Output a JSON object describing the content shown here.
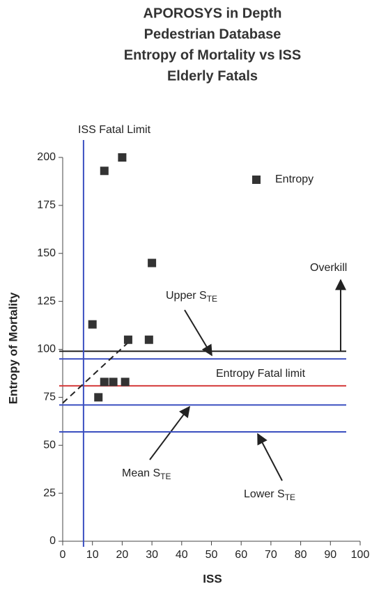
{
  "chart_data": {
    "type": "scatter",
    "title": [
      "APOROSYS in Depth",
      "Pedestrian Database",
      "Entropy of Mortality vs ISS",
      "Elderly Fatals"
    ],
    "x_label": "ISS",
    "y_label": "Entropy of Mortality",
    "xlim": [
      0,
      100
    ],
    "xticks": [
      0,
      10,
      20,
      30,
      40,
      50,
      60,
      70,
      80,
      90,
      100
    ],
    "ylim": [
      0,
      200
    ],
    "yticks": [
      0,
      25,
      50,
      75,
      100,
      125,
      150,
      175,
      200
    ],
    "series": [
      {
        "name": "Entropy",
        "color": "#333333",
        "x": [
          14,
          20,
          30,
          10,
          22,
          29,
          14,
          17,
          21,
          12
        ],
        "values": [
          193,
          200,
          145,
          113,
          105,
          105,
          83,
          83,
          83,
          75
        ]
      }
    ],
    "legend": "top-right",
    "hlines": [
      {
        "value": 99,
        "color": "#222222"
      },
      {
        "value": 95,
        "color": "#3a4fc0"
      },
      {
        "value": 81,
        "color": "#d43a3a"
      },
      {
        "value": 71,
        "color": "#3a4fc0"
      },
      {
        "value": 57,
        "color": "#3a4fc0"
      }
    ],
    "vline": {
      "value": 7,
      "color": "#3a4fc0"
    },
    "trend_line": {
      "x": [
        0,
        23
      ],
      "y": [
        72,
        105
      ]
    },
    "annotations": {
      "iss_fatal_limit": "ISS Fatal Limit",
      "overkill": "Overkill",
      "entropy_fatal_limit": "Entropy Fatal limit",
      "upper": {
        "text": "Upper S",
        "sub": "TE"
      },
      "mean": {
        "text": "Mean S",
        "sub": "TE"
      },
      "lower": {
        "text": "Lower S",
        "sub": "TE"
      }
    }
  }
}
